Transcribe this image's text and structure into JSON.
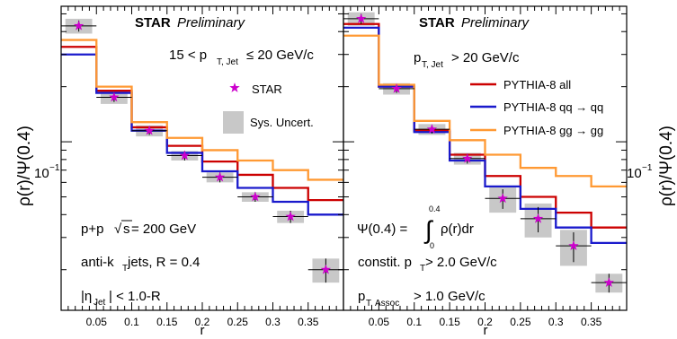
{
  "chart_data": [
    {
      "type": "line",
      "panel": "left",
      "header_bold": "STAR",
      "header_italic": "Preliminary",
      "selection": "15 < p",
      "selection_sub": "T, Jet",
      "selection_tail": "≤ 20 GeV/c",
      "legend": [
        {
          "label": "STAR",
          "kind": "marker"
        },
        {
          "label": "Sys. Uncert.",
          "kind": "box"
        }
      ],
      "annotations": {
        "system_a": "p+p ",
        "system_sqrt": "√",
        "system_s": "s",
        "system_b": " = 200 GeV",
        "jets_a": "anti-k",
        "jets_sub": "T",
        "jets_b": " jets, R = 0.4",
        "eta_a": "|η",
        "eta_sub": "Jet",
        "eta_b": "| < 1.0-R"
      },
      "xlabel": "r",
      "ylabel": "ρ(r)/Ψ(0.4)",
      "ytick_label": "10",
      "ytick_exp": "−1",
      "xticks": [
        "0.05",
        "0.1",
        "0.15",
        "0.2",
        "0.25",
        "0.3",
        "0.35"
      ],
      "xlim": [
        0,
        0.4
      ],
      "ylim": [
        0.012,
        0.55
      ],
      "yscale": "log",
      "bin_edges": [
        0,
        0.05,
        0.1,
        0.15,
        0.2,
        0.25,
        0.3,
        0.35,
        0.4
      ],
      "series": [
        {
          "name": "PYTHIA-8 all",
          "color": "#cc0000",
          "values": [
            0.33,
            0.19,
            0.12,
            0.095,
            0.078,
            0.066,
            0.056,
            0.048
          ]
        },
        {
          "name": "PYTHIA-8 qq → qq",
          "color": "#1a1acc",
          "values": [
            0.3,
            0.185,
            0.115,
            0.087,
            0.069,
            0.056,
            0.047,
            0.04
          ]
        },
        {
          "name": "PYTHIA-8 gg → gg",
          "color": "#ff9933",
          "values": [
            0.36,
            0.2,
            0.128,
            0.105,
            0.09,
            0.079,
            0.07,
            0.062
          ]
        }
      ],
      "data": {
        "name": "STAR",
        "x": [
          0.025,
          0.075,
          0.125,
          0.175,
          0.225,
          0.275,
          0.325,
          0.375
        ],
        "y": [
          0.43,
          0.175,
          0.115,
          0.084,
          0.064,
          0.05,
          0.039,
          0.02
        ],
        "err_low": [
          0.03,
          0.01,
          0.006,
          0.005,
          0.004,
          0.003,
          0.003,
          0.003
        ],
        "err_high": [
          0.03,
          0.01,
          0.006,
          0.005,
          0.004,
          0.003,
          0.003,
          0.003
        ],
        "sys_low": [
          0.04,
          0.014,
          0.008,
          0.005,
          0.004,
          0.003,
          0.003,
          0.003
        ],
        "sys_high": [
          0.04,
          0.014,
          0.008,
          0.005,
          0.004,
          0.003,
          0.003,
          0.003
        ]
      }
    },
    {
      "type": "line",
      "panel": "right",
      "header_bold": "STAR",
      "header_italic": "Preliminary",
      "selection": "p",
      "selection_sub": "T, Jet",
      "selection_tail": "> 20 GeV/c",
      "legend": [
        {
          "label": "PYTHIA-8 all",
          "kind": "line",
          "color": "#cc0000"
        },
        {
          "label": "PYTHIA-8 qq → qq",
          "kind": "line",
          "color": "#1a1acc"
        },
        {
          "label": "PYTHIA-8 gg → gg",
          "kind": "line",
          "color": "#ff9933"
        }
      ],
      "annotations": {
        "psi": "Ψ(0.4) = ",
        "int_up": "0.4",
        "int_low": "0",
        "integrand": "ρ(r)dr",
        "constit_a": "constit. p",
        "constit_sub": "T",
        "constit_b": " > 2.0 GeV/c",
        "assoc_a": "p",
        "assoc_sub": "T, Assoc",
        "assoc_b": " > 1.0 GeV/c"
      },
      "xlabel": "r",
      "ylabel": "ρ(r)/Ψ(0.4)",
      "ytick_label": "10",
      "ytick_exp": "−1",
      "xticks": [
        "0.05",
        "0.1",
        "0.15",
        "0.2",
        "0.25",
        "0.3",
        "0.35"
      ],
      "xlim": [
        0,
        0.4
      ],
      "ylim": [
        0.012,
        0.55
      ],
      "yscale": "log",
      "bin_edges": [
        0,
        0.05,
        0.1,
        0.15,
        0.2,
        0.25,
        0.3,
        0.35,
        0.4
      ],
      "series": [
        {
          "name": "PYTHIA-8 all",
          "color": "#cc0000",
          "values": [
            0.44,
            0.2,
            0.115,
            0.085,
            0.065,
            0.05,
            0.041,
            0.034
          ]
        },
        {
          "name": "PYTHIA-8 qq → qq",
          "color": "#1a1acc",
          "values": [
            0.42,
            0.2,
            0.113,
            0.079,
            0.057,
            0.043,
            0.034,
            0.028
          ]
        },
        {
          "name": "PYTHIA-8 gg → gg",
          "color": "#ff9933",
          "values": [
            0.38,
            0.205,
            0.13,
            0.102,
            0.085,
            0.072,
            0.065,
            0.057
          ]
        }
      ],
      "data": {
        "name": "STAR",
        "x": [
          0.025,
          0.075,
          0.125,
          0.175,
          0.225,
          0.275,
          0.325,
          0.375
        ],
        "y": [
          0.47,
          0.195,
          0.117,
          0.081,
          0.049,
          0.038,
          0.027,
          0.017
        ],
        "err_low": [
          0.03,
          0.01,
          0.006,
          0.005,
          0.006,
          0.006,
          0.005,
          0.002
        ],
        "err_high": [
          0.03,
          0.01,
          0.006,
          0.005,
          0.006,
          0.006,
          0.005,
          0.002
        ],
        "sys_low": [
          0.04,
          0.014,
          0.008,
          0.006,
          0.008,
          0.008,
          0.006,
          0.002
        ],
        "sys_high": [
          0.04,
          0.014,
          0.008,
          0.006,
          0.008,
          0.008,
          0.006,
          0.002
        ]
      }
    }
  ]
}
